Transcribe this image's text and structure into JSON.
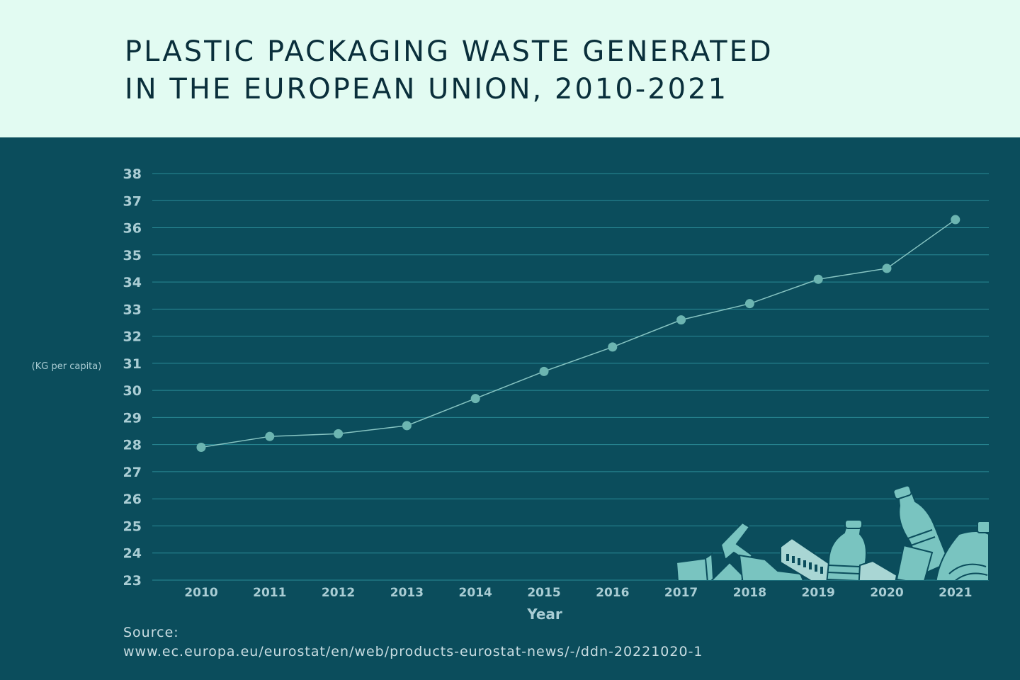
{
  "header": {
    "title_line1": "PLASTIC PACKAGING WASTE GENERATED",
    "title_line2": "IN THE EUROPEAN UNION, 2010-2021"
  },
  "source": {
    "label": "Source:",
    "url": "www.ec.europa.eu/eurostat/en/web/products-eurostat-news/-/ddn-20221020-1"
  },
  "colors": {
    "header_bg": "#e2fbf2",
    "title": "#0a2f3b",
    "chart_bg": "#0b4d5c",
    "gridline": "#2a8a96",
    "tick_label": "#aacdd4",
    "line": "#86c4c2",
    "marker": "#6cb5b1",
    "illustration": "#79c4c0"
  },
  "illustration": {
    "icon": "plastic-waste-pile-icon"
  },
  "chart_data": {
    "type": "line",
    "title": "PLASTIC PACKAGING WASTE GENERATED IN THE EUROPEAN UNION, 2010-2021",
    "xlabel": "Year",
    "ylabel": "(KG per capita)",
    "x": [
      "2010",
      "2011",
      "2012",
      "2013",
      "2014",
      "2015",
      "2016",
      "2017",
      "2018",
      "2019",
      "2020",
      "2021"
    ],
    "series": [
      {
        "values": [
          27.9,
          28.3,
          28.4,
          28.7,
          29.7,
          30.7,
          31.6,
          32.6,
          33.2,
          34.1,
          34.5,
          36.3
        ]
      }
    ],
    "ylim": [
      23,
      38
    ],
    "yticks": [
      "23",
      "24",
      "25",
      "26",
      "27",
      "28",
      "29",
      "30",
      "31",
      "32",
      "33",
      "34",
      "35",
      "36",
      "37",
      "38"
    ],
    "grid": true,
    "legend": "none"
  }
}
